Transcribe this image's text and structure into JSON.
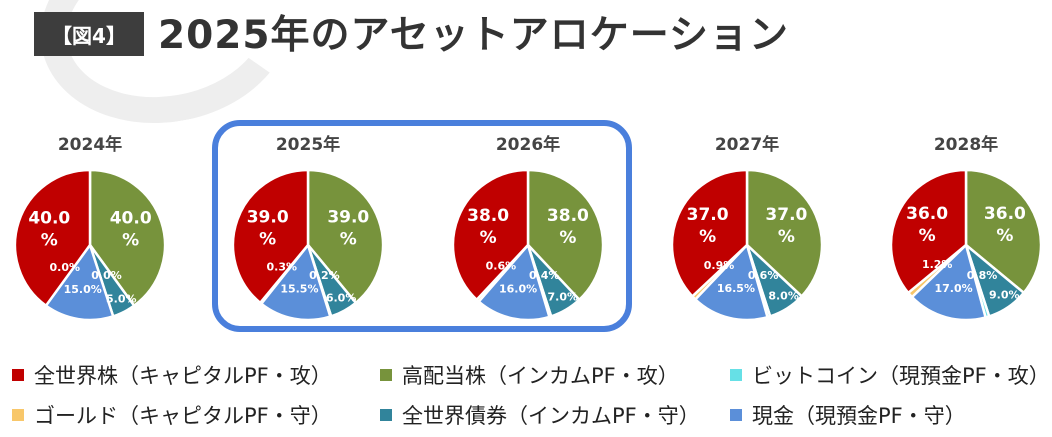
{
  "header": {
    "badge": "【図4】",
    "title": "2025年のアセットアロケーション"
  },
  "colors": {
    "world_equity": "#c00000",
    "high_dividend": "#77933c",
    "bitcoin": "#66e0e6",
    "gold": "#f8c76a",
    "world_bond": "#31849b",
    "cash": "#5b8fd9",
    "highlight": "#4a7fdc"
  },
  "legend": [
    {
      "label": "全世界株（キャピタルPF・攻）",
      "color": "#c00000"
    },
    {
      "label": "高配当株（インカムPF・攻）",
      "color": "#77933c"
    },
    {
      "label": "ビットコイン（現預金PF・攻）",
      "color": "#66e0e6"
    },
    {
      "label": "ゴールド（キャピタルPF・守）",
      "color": "#f8c76a"
    },
    {
      "label": "全世界債券（インカムPF・守）",
      "color": "#31849b"
    },
    {
      "label": "現金（現預金PF・守）",
      "color": "#5b8fd9"
    }
  ],
  "chart_data": [
    {
      "type": "pie",
      "title": "2024年",
      "slices": [
        {
          "name": "高配当株（インカムPF・攻）",
          "value": 40.0,
          "label": "40.0\n%"
        },
        {
          "name": "全世界債券（インカムPF・守）",
          "value": 5.0,
          "label": "5.0%"
        },
        {
          "name": "ビットコイン（現預金PF・攻）",
          "value": 0.0,
          "label": "0.0%"
        },
        {
          "name": "現金（現預金PF・守）",
          "value": 15.0,
          "label": "15.0%"
        },
        {
          "name": "ゴールド（キャピタルPF・守）",
          "value": 0.0,
          "label": "0.0%"
        },
        {
          "name": "全世界株（キャピタルPF・攻）",
          "value": 40.0,
          "label": "40.0\n%"
        }
      ]
    },
    {
      "type": "pie",
      "title": "2025年",
      "slices": [
        {
          "name": "高配当株（インカムPF・攻）",
          "value": 39.0,
          "label": "39.0\n%"
        },
        {
          "name": "全世界債券（インカムPF・守）",
          "value": 6.0,
          "label": "6.0%"
        },
        {
          "name": "ビットコイン（現預金PF・攻）",
          "value": 0.2,
          "label": "0.2%"
        },
        {
          "name": "現金（現預金PF・守）",
          "value": 15.5,
          "label": "15.5%"
        },
        {
          "name": "ゴールド（キャピタルPF・守）",
          "value": 0.3,
          "label": "0.3%"
        },
        {
          "name": "全世界株（キャピタルPF・攻）",
          "value": 39.0,
          "label": "39.0\n%"
        }
      ]
    },
    {
      "type": "pie",
      "title": "2026年",
      "slices": [
        {
          "name": "高配当株（インカムPF・攻）",
          "value": 38.0,
          "label": "38.0\n%"
        },
        {
          "name": "全世界債券（インカムPF・守）",
          "value": 7.0,
          "label": "7.0%"
        },
        {
          "name": "ビットコイン（現預金PF・攻）",
          "value": 0.4,
          "label": "0.4%"
        },
        {
          "name": "現金（現預金PF・守）",
          "value": 16.0,
          "label": "16.0%"
        },
        {
          "name": "ゴールド（キャピタルPF・守）",
          "value": 0.6,
          "label": "0.6%"
        },
        {
          "name": "全世界株（キャピタルPF・攻）",
          "value": 38.0,
          "label": "38.0\n%"
        }
      ]
    },
    {
      "type": "pie",
      "title": "2027年",
      "slices": [
        {
          "name": "高配当株（インカムPF・攻）",
          "value": 37.0,
          "label": "37.0\n%"
        },
        {
          "name": "全世界債券（インカムPF・守）",
          "value": 8.0,
          "label": "8.0%"
        },
        {
          "name": "ビットコイン（現預金PF・攻）",
          "value": 0.6,
          "label": "0.6%"
        },
        {
          "name": "現金（現預金PF・守）",
          "value": 16.5,
          "label": "16.5%"
        },
        {
          "name": "ゴールド（キャピタルPF・守）",
          "value": 0.9,
          "label": "0.9%"
        },
        {
          "name": "全世界株（キャピタルPF・攻）",
          "value": 37.0,
          "label": "37.0\n%"
        }
      ]
    },
    {
      "type": "pie",
      "title": "2028年",
      "slices": [
        {
          "name": "高配当株（インカムPF・攻）",
          "value": 36.0,
          "label": "36.0\n%"
        },
        {
          "name": "全世界債券（インカムPF・守）",
          "value": 9.0,
          "label": "9.0%"
        },
        {
          "name": "ビットコイン（現預金PF・攻）",
          "value": 0.8,
          "label": "0.8%"
        },
        {
          "name": "現金（現預金PF・守）",
          "value": 17.0,
          "label": "17.0%"
        },
        {
          "name": "ゴールド（キャピタルPF・守）",
          "value": 1.2,
          "label": "1.2%"
        },
        {
          "name": "全世界株（キャピタルPF・攻）",
          "value": 36.0,
          "label": "36.0\n%"
        }
      ]
    }
  ]
}
